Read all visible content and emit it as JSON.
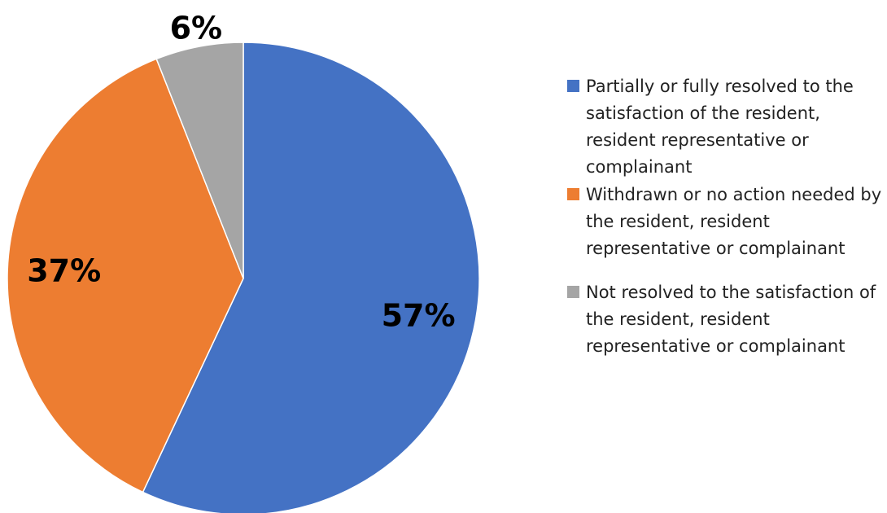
{
  "chart_data": {
    "type": "pie",
    "categories": [
      "Partially or fully resolved to the satisfaction of the resident, resident representative or complainant",
      "Withdrawn or no action needed by the resident, resident representative or complainant",
      "Not resolved to the satisfaction of the resident, resident representative or complainant"
    ],
    "values": [
      57,
      37,
      6
    ],
    "value_labels": [
      "57%",
      "37%",
      "6%"
    ],
    "colors": [
      "#4472c4",
      "#ed7d31",
      "#a5a5a5"
    ],
    "legend": "right"
  }
}
